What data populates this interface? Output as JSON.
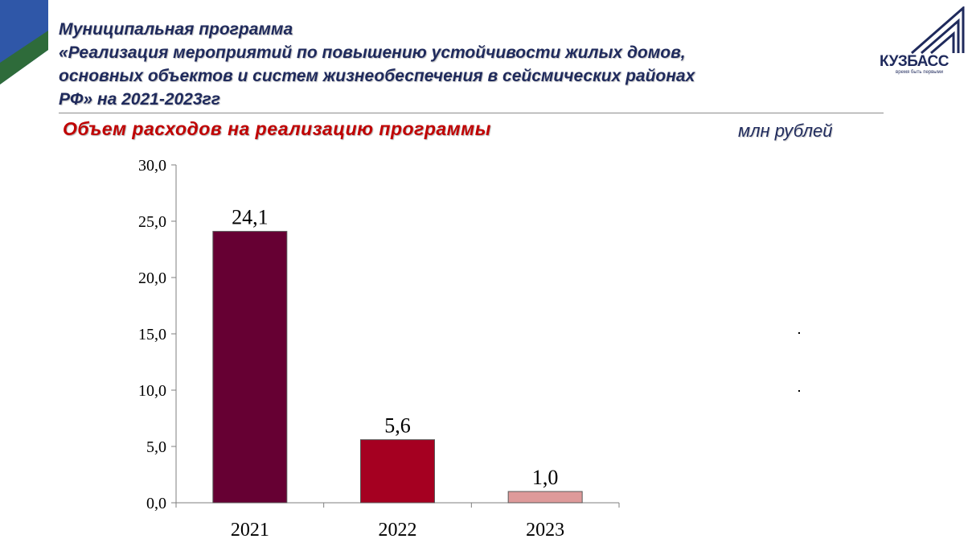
{
  "header": {
    "title_lines": [
      "Муниципальная программа",
      "«Реализация мероприятий по повышению устойчивости жилых домов,",
      "основных объектов и систем жизнеобеспечения в сейсмических районах",
      "РФ» на 2021-2023гг"
    ],
    "subtitle": "Объем расходов на реализацию программы",
    "unit": "млн рублей",
    "logo_text": "КУЗБАСС",
    "logo_slogan": "время быть первыми"
  },
  "colors": {
    "title": "#1f2a5c",
    "subtitle": "#c00000",
    "corner_blue": "#2f57a8",
    "corner_green": "#2e6b3a"
  },
  "chart_data": {
    "type": "bar",
    "categories": [
      "2021",
      "2022",
      "2023"
    ],
    "values": [
      24.1,
      5.6,
      1.0
    ],
    "value_labels": [
      "24,1",
      "5,6",
      "1,0"
    ],
    "bar_colors": [
      "#660033",
      "#a50021",
      "#de9a9a"
    ],
    "ylim": [
      0,
      30
    ],
    "y_ticks": [
      "0,0",
      "5,0",
      "10,0",
      "15,0",
      "20,0",
      "25,0",
      "30,0"
    ],
    "grid": false,
    "legend": "none"
  }
}
